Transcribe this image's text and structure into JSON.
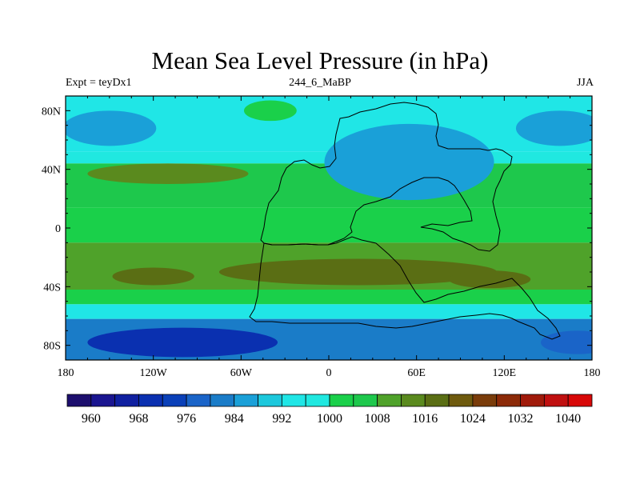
{
  "chart_data": {
    "type": "contour_map",
    "title": "Mean Sea Level Pressure (in hPa)",
    "subtitle_left": "Expt = teyDx1",
    "subtitle_center": "244_6_MaBP",
    "subtitle_right": "JJA",
    "units": "hPa",
    "x_axis": {
      "range": [
        -180,
        180
      ],
      "ticks": [
        {
          "value": -180,
          "label": "180"
        },
        {
          "value": -120,
          "label": "120W"
        },
        {
          "value": -60,
          "label": "60W"
        },
        {
          "value": 0,
          "label": "0"
        },
        {
          "value": 60,
          "label": "60E"
        },
        {
          "value": 120,
          "label": "120E"
        },
        {
          "value": 180,
          "label": "180"
        }
      ]
    },
    "y_axis": {
      "range": [
        -90,
        90
      ],
      "ticks": [
        {
          "value": 80,
          "label": "80N"
        },
        {
          "value": 40,
          "label": "40N"
        },
        {
          "value": 0,
          "label": "0"
        },
        {
          "value": -40,
          "label": "40S"
        },
        {
          "value": -80,
          "label": "80S"
        }
      ]
    },
    "colorbar": {
      "levels": [
        956,
        960,
        964,
        968,
        972,
        976,
        980,
        984,
        988,
        992,
        996,
        1000,
        1004,
        1008,
        1012,
        1016,
        1020,
        1024,
        1028,
        1032,
        1036,
        1040,
        1044
      ],
      "colors": [
        "#1d0f6e",
        "#1a1590",
        "#1020a0",
        "#0a30b0",
        "#0a40b8",
        "#1a64c8",
        "#1a7cc8",
        "#1aa0d8",
        "#1cc8dc",
        "#20e6e6",
        "#20e8e0",
        "#1ad04a",
        "#1ec84c",
        "#4fa22a",
        "#5a8a1e",
        "#5a6e14",
        "#6e5a0e",
        "#7a3c0a",
        "#8c2a08",
        "#a01a0a",
        "#c01010",
        "#d80808"
      ],
      "labeled_ticks": [
        {
          "value": 960,
          "label": "960"
        },
        {
          "value": 968,
          "label": "968"
        },
        {
          "value": 976,
          "label": "976"
        },
        {
          "value": 984,
          "label": "984"
        },
        {
          "value": 992,
          "label": "992"
        },
        {
          "value": 1000,
          "label": "1000"
        },
        {
          "value": 1008,
          "label": "1008"
        },
        {
          "value": 1016,
          "label": "1016"
        },
        {
          "value": 1024,
          "label": "1024"
        },
        {
          "value": 1032,
          "label": "1032"
        },
        {
          "value": 1040,
          "label": "1040"
        }
      ]
    },
    "field_regions": [
      {
        "name": "north-band",
        "kind": "band",
        "lat_top": 90,
        "lat_bottom": 52,
        "value": 994
      },
      {
        "name": "north-transition",
        "kind": "band",
        "lat_top": 52,
        "lat_bottom": 44,
        "value": 998
      },
      {
        "name": "subtropical-north",
        "kind": "band",
        "lat_top": 44,
        "lat_bottom": 14,
        "value": 1006
      },
      {
        "name": "equatorial",
        "kind": "band",
        "lat_top": 14,
        "lat_bottom": -10,
        "value": 1002
      },
      {
        "name": "subtropical-south",
        "kind": "band",
        "lat_top": -10,
        "lat_bottom": -42,
        "value": 1010
      },
      {
        "name": "south-transition",
        "kind": "band",
        "lat_top": -42,
        "lat_bottom": -52,
        "value": 1002
      },
      {
        "name": "southern-ocean",
        "kind": "band",
        "lat_top": -52,
        "lat_bottom": -62,
        "value": 994
      },
      {
        "name": "antarctic-low",
        "kind": "band",
        "lat_top": -62,
        "lat_bottom": -90,
        "value": 982
      },
      {
        "name": "north-low-west",
        "kind": "blob",
        "lon": -150,
        "lat": 68,
        "lon_r": 32,
        "lat_r": 12,
        "value": 986
      },
      {
        "name": "north-low-east",
        "kind": "blob",
        "lon": 158,
        "lat": 68,
        "lon_r": 30,
        "lat_r": 12,
        "value": 986
      },
      {
        "name": "north-ocean-high",
        "kind": "blob",
        "lon": -40,
        "lat": 80,
        "lon_r": 18,
        "lat_r": 7,
        "value": 1002
      },
      {
        "name": "subtropical-high-north",
        "kind": "blob",
        "lon": -110,
        "lat": 37,
        "lon_r": 55,
        "lat_r": 7,
        "value": 1014
      },
      {
        "name": "continental-low",
        "kind": "blob",
        "lon": 55,
        "lat": 45,
        "lon_r": 58,
        "lat_r": 26,
        "value": 987
      },
      {
        "name": "subtropical-high-south",
        "kind": "blob",
        "lon": 20,
        "lat": -30,
        "lon_r": 95,
        "lat_r": 9,
        "value": 1016
      },
      {
        "name": "south-high-west",
        "kind": "blob",
        "lon": -120,
        "lat": -33,
        "lon_r": 28,
        "lat_r": 6,
        "value": 1016
      },
      {
        "name": "south-high-east",
        "kind": "blob",
        "lon": 110,
        "lat": -35,
        "lon_r": 28,
        "lat_r": 6,
        "value": 1016
      },
      {
        "name": "antarctic-deep-low",
        "kind": "blob",
        "lon": -100,
        "lat": -78,
        "lon_r": 65,
        "lat_r": 10,
        "value": 968
      },
      {
        "name": "antarctic-east-low",
        "kind": "blob",
        "lon": 170,
        "lat": -78,
        "lon_r": 25,
        "lat_r": 8,
        "value": 978
      }
    ]
  }
}
